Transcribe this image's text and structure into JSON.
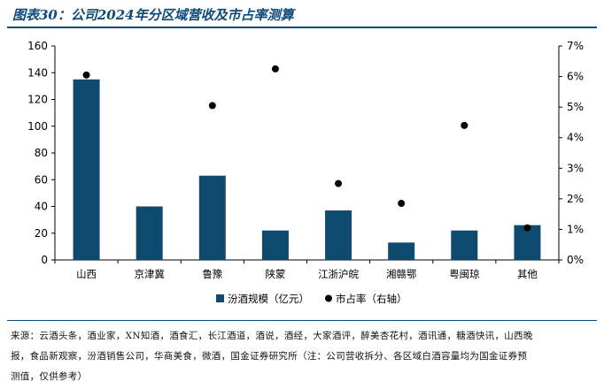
{
  "figure": {
    "title": "图表30：公司2024年分区域营收及市占率测算"
  },
  "source": {
    "lines": [
      "来源：云酒头条，酒业家，XN知酒，酒食汇，长江酒道，酒说，酒经，大家酒评，醉美杏花村，酒讯通，糖酒快讯，山西晚",
      "报，食品新观察，汾酒销售公司，华商美食，微酒，国金证券研究所（注：公司营收拆分、各区域白酒容量均为国金证券预",
      "测值，仅供参考）"
    ]
  },
  "chart_data": {
    "type": "bar",
    "categories": [
      "山西",
      "京津冀",
      "鲁豫",
      "陕蒙",
      "江浙沪皖",
      "湘赣鄂",
      "粤闽琼",
      "其他"
    ],
    "series": [
      {
        "name": "汾酒规模（亿元）",
        "type": "bar",
        "axis": "left",
        "color": "#0e4a6e",
        "values": [
          135,
          40,
          63,
          22,
          37,
          13,
          22,
          26
        ]
      },
      {
        "name": "市占率（右轴）",
        "type": "scatter",
        "axis": "right",
        "color": "#000000",
        "values": [
          6.05,
          null,
          5.05,
          6.25,
          2.5,
          1.85,
          4.4,
          1.05
        ]
      }
    ],
    "y_left": {
      "min": 0,
      "max": 160,
      "ticks": [
        "0",
        "20",
        "40",
        "60",
        "80",
        "100",
        "120",
        "140",
        "160"
      ]
    },
    "y_right": {
      "min": 0,
      "max": 7,
      "ticks": [
        "0%",
        "1%",
        "2%",
        "3%",
        "4%",
        "5%",
        "6%",
        "7%"
      ]
    },
    "grid": false,
    "legend": "bottom-center"
  }
}
